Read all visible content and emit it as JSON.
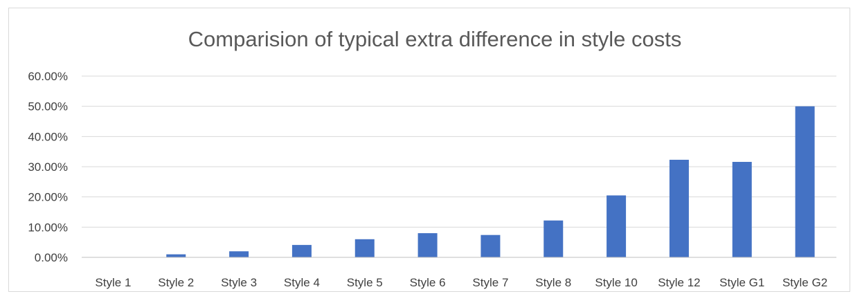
{
  "chart_data": {
    "type": "bar",
    "title": "Comparision of typical extra difference in style costs",
    "xlabel": "",
    "ylabel": "",
    "categories": [
      "Style 1",
      "Style 2",
      "Style 3",
      "Style 4",
      "Style 5",
      "Style 6",
      "Style 7",
      "Style 8",
      "Style 10",
      "Style 12",
      "Style G1",
      "Style G2"
    ],
    "values": [
      0.0,
      1.0,
      2.0,
      4.1,
      6.0,
      8.0,
      7.4,
      12.2,
      20.5,
      32.3,
      31.6,
      50.0
    ],
    "ylim": [
      0,
      60
    ],
    "yticks": [
      "0.00%",
      "10.00%",
      "20.00%",
      "30.00%",
      "40.00%",
      "50.00%",
      "60.00%"
    ],
    "grid": true,
    "legend": "none",
    "bar_color": "#4472C4"
  }
}
